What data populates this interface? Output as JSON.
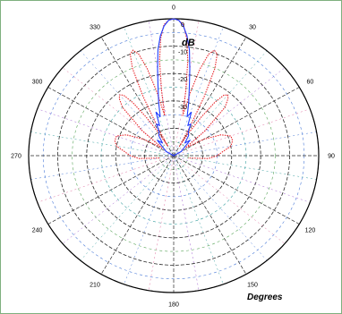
{
  "chart_data": {
    "type": "polar-line",
    "xlabel": "Degrees",
    "rlabel": "dB",
    "rlim": [
      -50,
      0
    ],
    "radial_ticks": [
      0,
      -10,
      -20,
      -30
    ],
    "angle_ticks": [
      0,
      30,
      60,
      90,
      120,
      150,
      180,
      210,
      240,
      270,
      300,
      330
    ],
    "grid": true,
    "series": [
      {
        "color": "#e8262b",
        "style": "dotted",
        "angles": [
          -100,
          -95,
          -90,
          -85,
          -80,
          -75,
          -70,
          -65,
          -60,
          -55,
          -50,
          -45,
          -42,
          -40,
          -38,
          -36,
          -34,
          -32,
          -30,
          -28,
          -26,
          -24,
          -22,
          -20,
          -18,
          -16,
          -14,
          -12,
          -10,
          -8,
          -6,
          -4,
          -2,
          0,
          2,
          4,
          6,
          8,
          10,
          12,
          14,
          16,
          18,
          20,
          22,
          24,
          26,
          28,
          30,
          32,
          34,
          36,
          38,
          40,
          42,
          45,
          50,
          55,
          60,
          65,
          70,
          75,
          80,
          85,
          90,
          95,
          100
        ],
        "values": [
          -45,
          -38,
          -35,
          -33,
          -30,
          -29,
          -29,
          -32,
          -38,
          -45,
          -36,
          -25,
          -22,
          -21,
          -22,
          -26,
          -33,
          -40,
          -46,
          -38,
          -26,
          -15,
          -10,
          -9,
          -11,
          -17,
          -26,
          -35,
          -26,
          -15,
          -7,
          -2,
          -0.5,
          0,
          -0.5,
          -2,
          -7,
          -15,
          -26,
          -35,
          -26,
          -17,
          -11,
          -9,
          -10,
          -15,
          -26,
          -38,
          -46,
          -40,
          -33,
          -26,
          -22,
          -21,
          -22,
          -25,
          -36,
          -45,
          -38,
          -32,
          -29,
          -29,
          -30,
          -33,
          -35,
          -38,
          -45
        ]
      },
      {
        "color": "#1f3cff",
        "style": "solid",
        "angles": [
          -70,
          -60,
          -50,
          -45,
          -40,
          -35,
          -30,
          -27,
          -24,
          -21,
          -18,
          -15,
          -12,
          -10,
          -8,
          -6,
          -4,
          -2,
          0,
          2,
          4,
          6,
          8,
          10,
          12,
          15,
          18,
          21,
          24,
          27,
          30,
          35,
          40,
          45,
          50,
          60,
          70
        ],
        "values": [
          -50,
          -47,
          -45,
          -42,
          -44,
          -41,
          -40,
          -37,
          -38,
          -33,
          -35,
          -30,
          -24,
          -18,
          -11,
          -6,
          -2.5,
          -0.5,
          0,
          -0.5,
          -2.5,
          -6,
          -11,
          -18,
          -24,
          -30,
          -35,
          -33,
          -38,
          -37,
          -40,
          -41,
          -44,
          -42,
          -45,
          -47,
          -50
        ]
      }
    ]
  }
}
